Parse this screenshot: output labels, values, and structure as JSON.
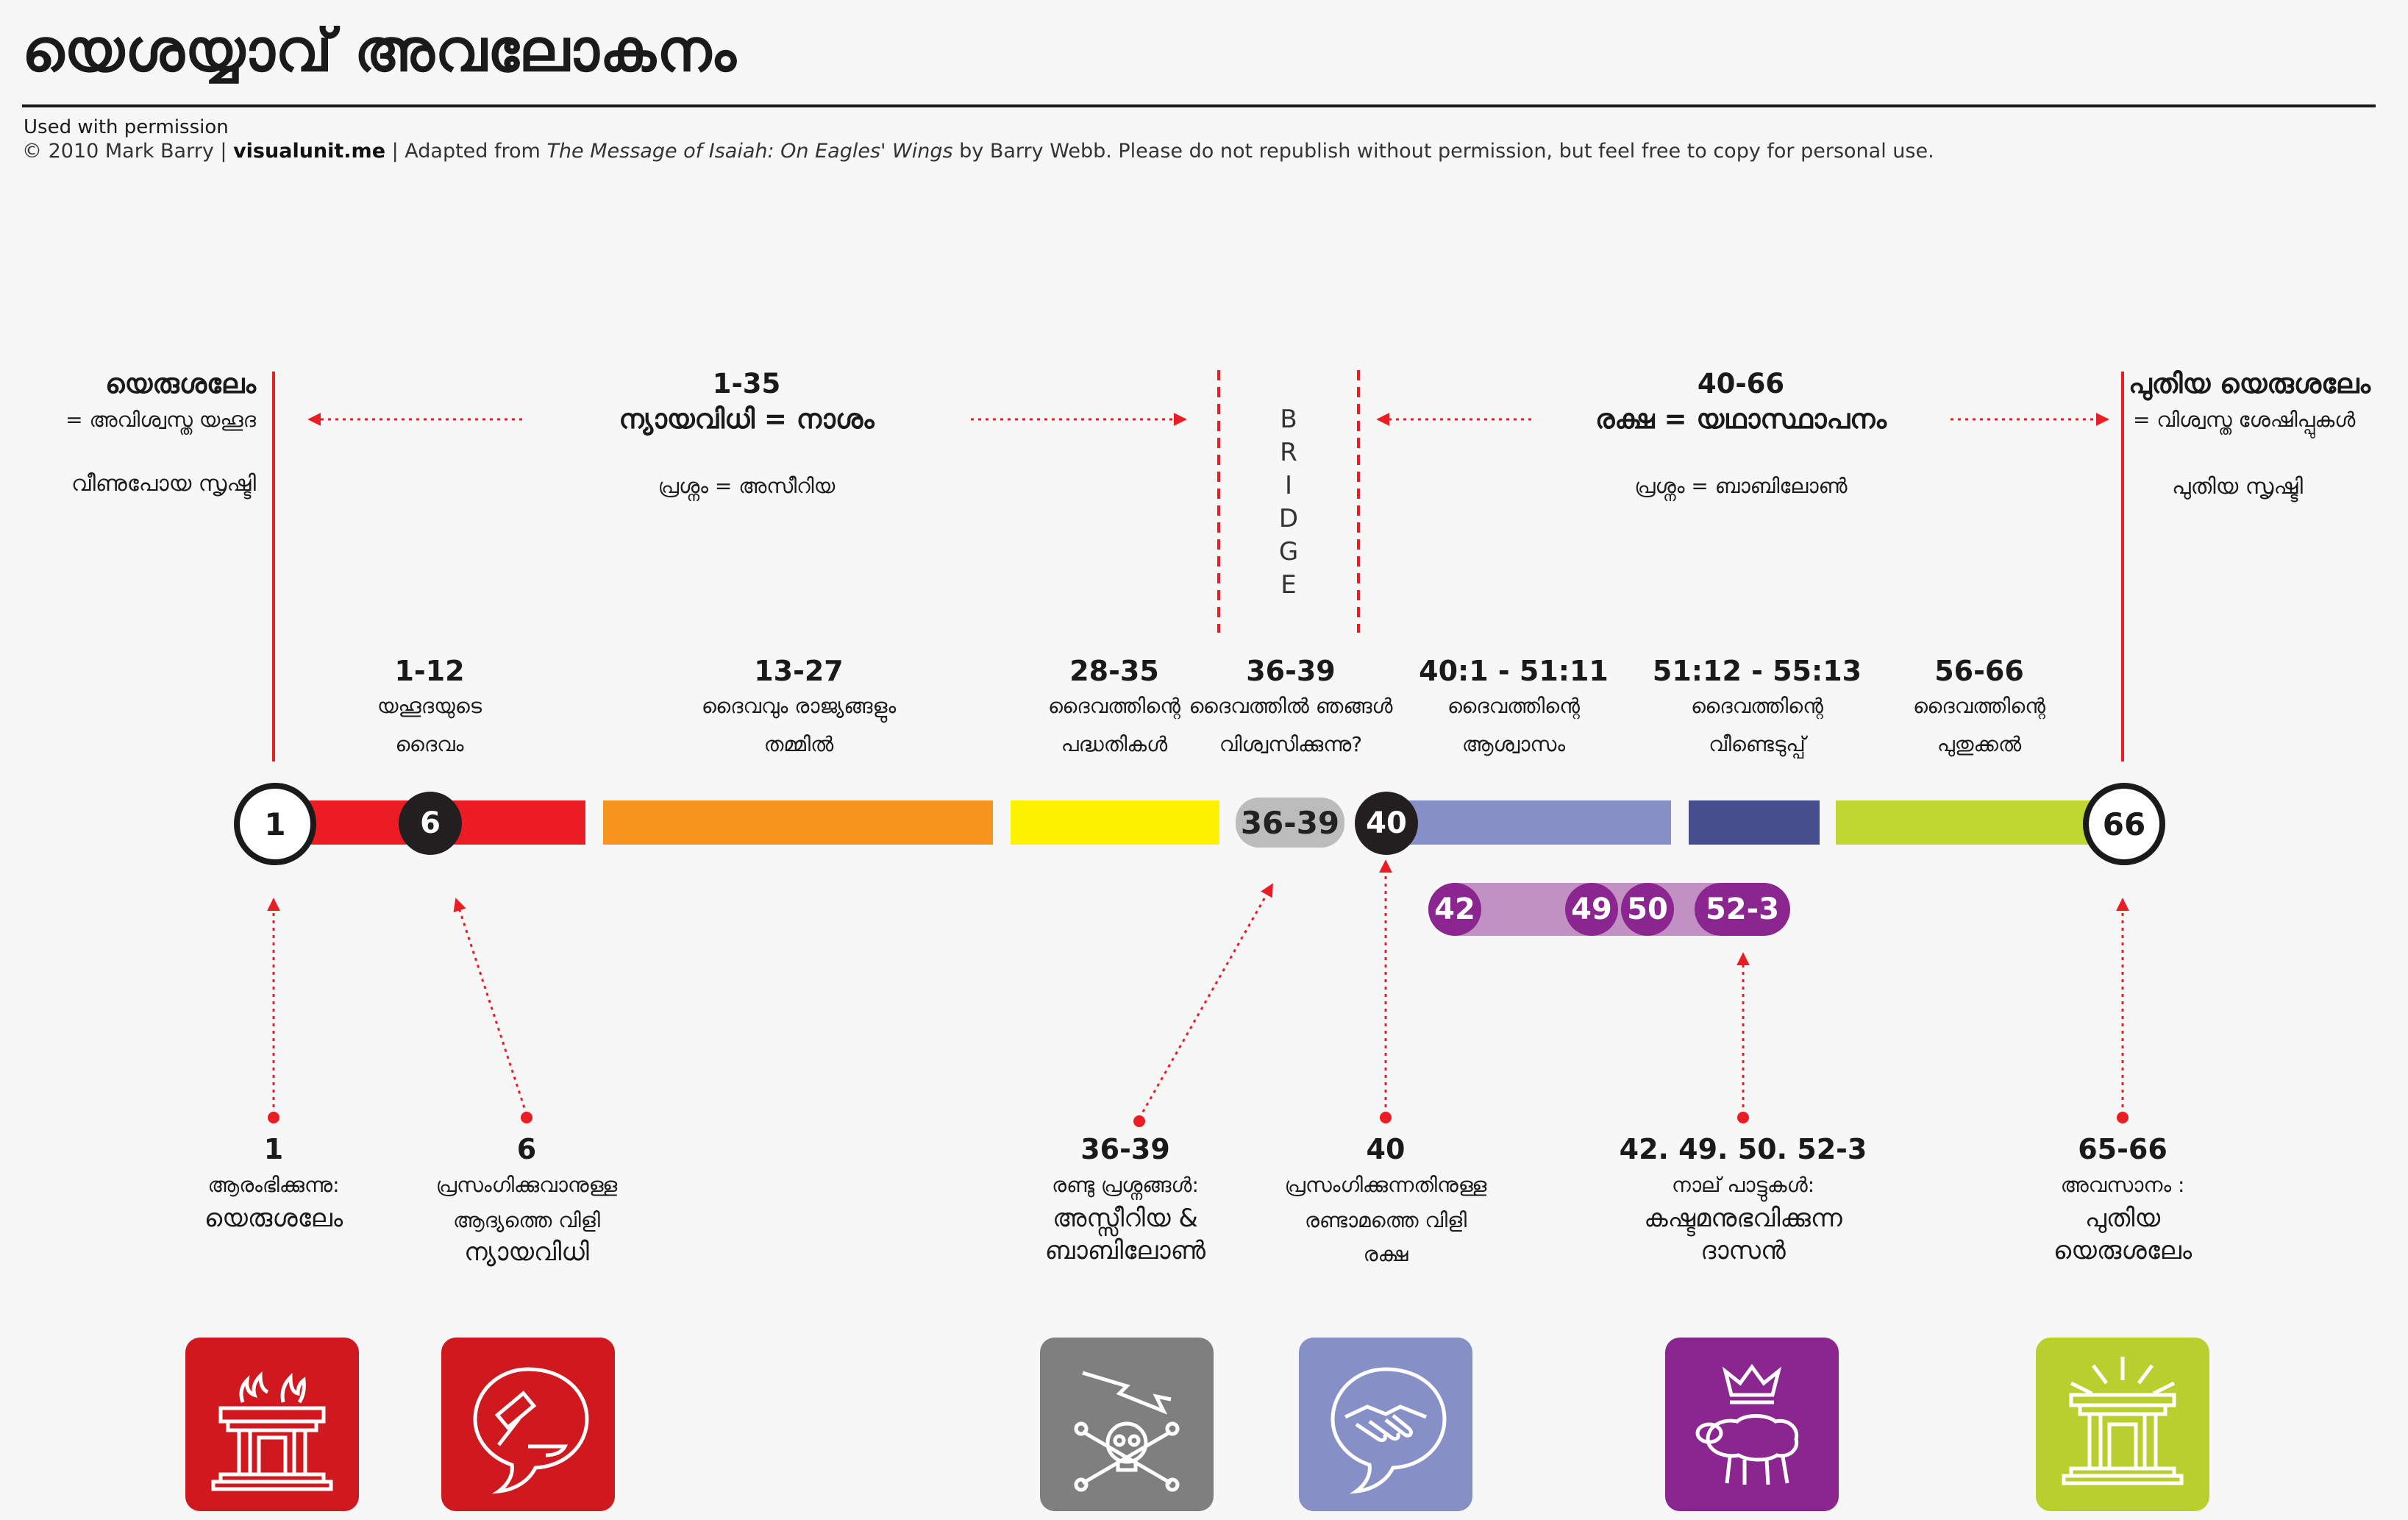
{
  "title": "യെശയ്യാവ് അവലോകനം",
  "credits": {
    "line1": "Used with permission",
    "line2_a": "© 2010 Mark Barry  |  ",
    "line2_site": "visualunit.me",
    "line2_b": "  |  Adapted from ",
    "line2_book": "The Message of Isaiah: On Eagles' Wings",
    "line2_c": " by Barry Webb. Please do not republish without permission, but feel free to copy for personal use."
  },
  "top": {
    "left": {
      "title": "യെരുശലേം",
      "sub": "= അവിശ്വസ്ത യഹൂദ",
      "note": "വീണുപോയ സൃഷ്ടി"
    },
    "judgment": {
      "range": "1-35",
      "title": "ന്യായവിധി = നാശം",
      "note": "പ്രശ്നം = അസീറിയ"
    },
    "bridge": [
      "B",
      "R",
      "I",
      "D",
      "G",
      "E"
    ],
    "salvation": {
      "range": "40-66",
      "title": "രക്ഷ = യഥാസ്ഥാപനം",
      "note": "പ്രശ്നം = ബാബിലോൺ"
    },
    "right": {
      "title": "പുതിയ യെരുശലേം",
      "sub": "= വിശ്വസ്ത ശേഷിപ്പുകൾ",
      "note": "പുതിയ സൃഷ്ടി"
    }
  },
  "sections": [
    {
      "range": "1-12",
      "l1": "യഹൂദയുടെ",
      "l2": "ദൈവം"
    },
    {
      "range": "13-27",
      "l1": "ദൈവവും രാജ്യങ്ങളും",
      "l2": "തമ്മിൽ"
    },
    {
      "range": "28-35",
      "l1": "ദൈവത്തിന്റെ",
      "l2": "പദ്ധതികൾ"
    },
    {
      "range": "36-39",
      "l1": "ദൈവത്തിൽ ഞങ്ങൾ",
      "l2": "വിശ്വസിക്കുന്നു?"
    },
    {
      "range": "40:1 - 51:11",
      "l1": "ദൈവത്തിന്റെ",
      "l2": "ആശ്വാസം"
    },
    {
      "range": "51:12 - 55:13",
      "l1": "ദൈവത്തിന്റെ",
      "l2": "വീണ്ടെടുപ്പ്"
    },
    {
      "range": "56-66",
      "l1": "ദൈവത്തിന്റെ",
      "l2": "പുതുക്കൽ"
    }
  ],
  "markers": {
    "c1": "1",
    "c6": "6",
    "bridge_pill": "36-39",
    "c40": "40",
    "c66": "66",
    "songs": [
      "42",
      "49",
      "50",
      "52-3"
    ]
  },
  "bottom": [
    {
      "num": "1",
      "l1": "ആരംഭിക്കുന്നു:",
      "l2": "യെരുശലേം",
      "l3": ""
    },
    {
      "num": "6",
      "l1": "പ്രസംഗിക്കുവാനുള്ള",
      "l2": "ആദ്യത്തെ വിളി",
      "l3": "ന്യായവിധി"
    },
    {
      "num": "36-39",
      "l1": "രണ്ടു പ്രശ്നങ്ങൾ:",
      "l2": "അസ്സീറിയ &",
      "l3": "ബാബിലോൺ"
    },
    {
      "num": "40",
      "l1": "പ്രസംഗിക്കുന്നതിനുള്ള",
      "l2": "രണ്ടാമത്തെ വിളി",
      "l3": "രക്ഷ"
    },
    {
      "num": "42. 49. 50. 52-3",
      "l1": "നാല് പാട്ടുകൾ:",
      "l2": "കഷ്ടമനുഭവിക്കുന്ന",
      "l3": "ദാസൻ"
    },
    {
      "num": "65-66",
      "l1": "അവസാനം :",
      "l2": "പുതിയ",
      "l3": "യെരുശലേം"
    }
  ],
  "icons": [
    {
      "name": "burning-temple",
      "color": "#d0181f"
    },
    {
      "name": "gavel-speech",
      "color": "#d0181f"
    },
    {
      "name": "lightning-skull",
      "color": "#7f7f7f"
    },
    {
      "name": "handshake-speech",
      "color": "#8790c6"
    },
    {
      "name": "crown-lamb",
      "color": "#8b2590"
    },
    {
      "name": "radiant-temple",
      "color": "#b9cf2d"
    }
  ],
  "colors": {
    "red": "#ec1c24",
    "orange": "#f7941e",
    "yellow": "#fff200",
    "grey": "#bcbcbc",
    "periwinkle": "#8790c6",
    "navy": "#464e8e",
    "lime": "#bfd730",
    "lilac": "#c191c4",
    "purple": "#8b2590"
  }
}
